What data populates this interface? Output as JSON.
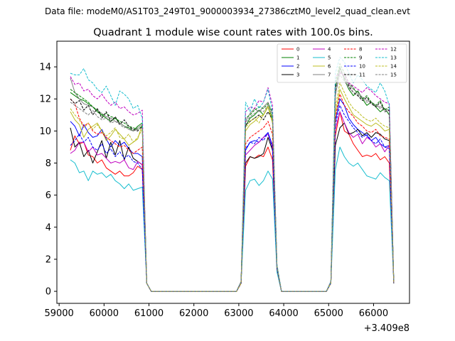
{
  "chart_data": {
    "type": "line",
    "suptitle": "Data file: modeM0/AS1T03_249T01_9000003934_27386cztM0_level2_quad_clean.evt",
    "title": "Quadrant 1 module wise count rates with 100.0s bins.",
    "xlabel": "",
    "ylabel": "",
    "x_offset_label": "+3.409e8",
    "xlim": [
      58950,
      66800
    ],
    "ylim": [
      -0.75,
      15.6
    ],
    "xticks": [
      59000,
      60000,
      61000,
      62000,
      63000,
      64000,
      65000,
      66000
    ],
    "yticks": [
      0,
      2,
      4,
      6,
      8,
      10,
      12,
      14
    ],
    "segments": [
      {
        "start": 59250,
        "step": 100,
        "count": 17
      },
      {
        "start": 60950,
        "step": 100,
        "count": 21
      },
      {
        "start": 63050,
        "step": 100,
        "count": 7
      },
      {
        "start": 63750,
        "step": 100,
        "count": 14
      },
      {
        "start": 65150,
        "step": 100,
        "count": 14
      }
    ],
    "legend_columns": 4,
    "series": [
      {
        "name": "0",
        "color": "#ff0000",
        "dash": "solid",
        "values": [
          8.8,
          9.7,
          9.2,
          9.3,
          8.5,
          8.4,
          8.0,
          8.2,
          7.7,
          7.5,
          7.3,
          7.5,
          7.2,
          7.2,
          7.4,
          7.8,
          7.6,
          0.5,
          0,
          0,
          0,
          0,
          0,
          0,
          0,
          0,
          0,
          0,
          0,
          0,
          0,
          0,
          0,
          0,
          0,
          0,
          0,
          0,
          0.5,
          7.8,
          8.4,
          8.3,
          8.5,
          8.4,
          9.0,
          8.2,
          1.4,
          0,
          0,
          0,
          0,
          0,
          0,
          0,
          0,
          0,
          0,
          0,
          0.5,
          9.7,
          11.2,
          10.0,
          9.8,
          9.2,
          8.8,
          8.4,
          8.5,
          8.4,
          8.6,
          8.2,
          8.4,
          8.0,
          0.5
        ]
      },
      {
        "name": "1",
        "color": "#008000",
        "dash": "solid",
        "values": [
          12.4,
          12.2,
          12.0,
          11.9,
          11.7,
          11.5,
          11.2,
          11.0,
          10.8,
          10.6,
          10.8,
          10.5,
          10.3,
          10.2,
          10.0,
          10.3,
          10.5,
          0.5,
          0,
          0,
          0,
          0,
          0,
          0,
          0,
          0,
          0,
          0,
          0,
          0,
          0,
          0,
          0,
          0,
          0,
          0,
          0,
          0,
          0.6,
          10.3,
          10.8,
          11.0,
          11.3,
          11.0,
          11.5,
          10.8,
          1.5,
          0,
          0,
          0,
          0,
          0,
          0,
          0,
          0,
          0,
          0,
          0,
          0.6,
          12.7,
          14.0,
          13.2,
          12.6,
          12.2,
          12.5,
          12.0,
          11.6,
          11.8,
          11.5,
          11.2,
          11.4,
          11.0,
          0.5
        ]
      },
      {
        "name": "2",
        "color": "#0000ff",
        "dash": "solid",
        "values": [
          10.6,
          10.3,
          9.7,
          10.4,
          9.9,
          9.6,
          9.7,
          10.1,
          9.5,
          9.0,
          9.4,
          9.1,
          9.3,
          8.9,
          8.6,
          8.6,
          8.4,
          0.5,
          0,
          0,
          0,
          0,
          0,
          0,
          0,
          0,
          0,
          0,
          0,
          0,
          0,
          0,
          0,
          0,
          0,
          0,
          0,
          0,
          0.5,
          8.8,
          9.3,
          9.4,
          9.3,
          9.6,
          9.9,
          9.1,
          1.3,
          0,
          0,
          0,
          0,
          0,
          0,
          0,
          0,
          0,
          0,
          0,
          0.5,
          10.6,
          12.0,
          11.6,
          10.8,
          10.4,
          10.1,
          9.9,
          9.7,
          9.4,
          9.6,
          9.2,
          9.0,
          9.1,
          0.5
        ]
      },
      {
        "name": "3",
        "color": "#000000",
        "dash": "solid",
        "values": [
          10.2,
          9.0,
          9.3,
          8.4,
          8.8,
          8.0,
          8.7,
          9.4,
          8.3,
          9.3,
          8.5,
          9.4,
          8.2,
          9.0,
          8.3,
          8.1,
          7.9,
          0.5,
          0,
          0,
          0,
          0,
          0,
          0,
          0,
          0,
          0,
          0,
          0,
          0,
          0,
          0,
          0,
          0,
          0,
          0,
          0,
          0,
          0.5,
          8.0,
          8.4,
          8.3,
          8.4,
          8.6,
          9.6,
          8.8,
          1.4,
          0,
          0,
          0,
          0,
          0,
          0,
          0,
          0,
          0,
          0,
          0,
          0.5,
          9.1,
          10.2,
          10.5,
          9.8,
          9.9,
          10.1,
          9.7,
          9.9,
          9.6,
          9.9,
          9.8,
          9.5,
          9.4,
          0.5
        ]
      },
      {
        "name": "4",
        "color": "#bf00bf",
        "dash": "solid",
        "values": [
          8.6,
          8.8,
          9.3,
          9.3,
          8.7,
          9.0,
          8.5,
          8.6,
          8.3,
          8.0,
          8.1,
          8.0,
          8.2,
          7.7,
          7.6,
          8.1,
          7.9,
          0.5,
          0,
          0,
          0,
          0,
          0,
          0,
          0,
          0,
          0,
          0,
          0,
          0,
          0,
          0,
          0,
          0,
          0,
          0,
          0,
          0,
          0.5,
          8.5,
          8.8,
          9.1,
          9.3,
          9.6,
          9.8,
          9.0,
          1.3,
          0,
          0,
          0,
          0,
          0,
          0,
          0,
          0,
          0,
          0,
          0,
          0.5,
          10.1,
          11.2,
          10.5,
          9.9,
          9.6,
          9.8,
          9.2,
          9.6,
          9.4,
          9.0,
          9.2,
          8.7,
          9.1,
          0.5
        ]
      },
      {
        "name": "5",
        "color": "#17becf",
        "dash": "solid",
        "values": [
          8.2,
          8.0,
          7.4,
          7.5,
          6.9,
          7.5,
          7.3,
          7.4,
          7.1,
          7.3,
          6.9,
          6.7,
          6.4,
          6.7,
          6.3,
          6.4,
          6.5,
          0.5,
          0,
          0,
          0,
          0,
          0,
          0,
          0,
          0,
          0,
          0,
          0,
          0,
          0,
          0,
          0,
          0,
          0,
          0,
          0,
          0,
          0.5,
          6.3,
          6.9,
          7.0,
          6.6,
          6.9,
          7.5,
          7.0,
          1.2,
          0,
          0,
          0,
          0,
          0,
          0,
          0,
          0,
          0,
          0,
          0,
          0.5,
          7.6,
          9.0,
          8.4,
          8.0,
          7.8,
          8.0,
          7.6,
          7.2,
          7.1,
          7.0,
          7.4,
          7.1,
          6.9,
          0.5
        ]
      },
      {
        "name": "6",
        "color": "#bcbd22",
        "dash": "solid",
        "values": [
          11.2,
          10.7,
          10.4,
          9.6,
          10.1,
          10.3,
          10.5,
          10.0,
          9.4,
          9.7,
          10.1,
          9.8,
          9.5,
          9.1,
          9.3,
          9.5,
          10.4,
          0.5,
          0,
          0,
          0,
          0,
          0,
          0,
          0,
          0,
          0,
          0,
          0,
          0,
          0,
          0,
          0,
          0,
          0,
          0,
          0,
          0,
          0.5,
          10.0,
          10.4,
          10.6,
          10.9,
          11.0,
          11.5,
          10.5,
          1.5,
          0,
          0,
          0,
          0,
          0,
          0,
          0,
          0,
          0,
          0,
          0,
          0.5,
          11.1,
          12.6,
          12.0,
          11.5,
          11.0,
          10.8,
          10.6,
          10.4,
          10.3,
          10.5,
          10.3,
          10.0,
          10.1,
          0.5
        ]
      },
      {
        "name": "7",
        "color": "#808080",
        "dash": "solid",
        "values": [
          13.3,
          12.4,
          12.0,
          11.7,
          11.6,
          11.5,
          11.3,
          11.1,
          10.9,
          10.8,
          10.6,
          10.5,
          10.3,
          10.1,
          10.0,
          10.2,
          10.4,
          0.5,
          0,
          0,
          0,
          0,
          0,
          0,
          0,
          0,
          0,
          0,
          0,
          0,
          0,
          0,
          0,
          0,
          0,
          0,
          0,
          0,
          0.6,
          10.6,
          11.1,
          11.4,
          11.2,
          11.5,
          11.8,
          11.0,
          1.6,
          0,
          0,
          0,
          0,
          0,
          0,
          0,
          0,
          0,
          0,
          0,
          0.6,
          12.2,
          13.7,
          13.4,
          12.9,
          12.6,
          12.4,
          12.1,
          11.9,
          11.8,
          11.6,
          11.5,
          11.4,
          11.3,
          0.5
        ]
      },
      {
        "name": "8",
        "color": "#ff0000",
        "dash": "dashed",
        "values": [
          12.0,
          11.7,
          10.8,
          10.3,
          10.5,
          10.0,
          9.8,
          9.9,
          9.6,
          9.4,
          9.2,
          9.0,
          9.1,
          8.8,
          8.6,
          8.8,
          9.0,
          0.5,
          0,
          0,
          0,
          0,
          0,
          0,
          0,
          0,
          0,
          0,
          0,
          0,
          0,
          0,
          0,
          0,
          0,
          0,
          0,
          0,
          0.5,
          9.2,
          9.6,
          9.8,
          10.0,
          10.2,
          10.6,
          9.8,
          1.4,
          0,
          0,
          0,
          0,
          0,
          0,
          0,
          0,
          0,
          0,
          0,
          0.5,
          10.8,
          12.3,
          11.6,
          11.2,
          10.9,
          10.5,
          10.3,
          10.0,
          9.9,
          10.1,
          9.7,
          9.6,
          9.5,
          0.5
        ]
      },
      {
        "name": "9",
        "color": "#008000",
        "dash": "dashed",
        "values": [
          12.6,
          12.4,
          12.2,
          12.0,
          11.8,
          11.5,
          11.3,
          11.0,
          11.1,
          10.9,
          10.8,
          10.6,
          10.5,
          10.3,
          10.2,
          10.1,
          10.3,
          0.5,
          0,
          0,
          0,
          0,
          0,
          0,
          0,
          0,
          0,
          0,
          0,
          0,
          0,
          0,
          0,
          0,
          0,
          0,
          0,
          0,
          0.6,
          10.8,
          11.0,
          11.3,
          11.5,
          11.4,
          11.7,
          11.2,
          1.6,
          0,
          0,
          0,
          0,
          0,
          0,
          0,
          0,
          0,
          0,
          0,
          0.6,
          13.0,
          14.2,
          13.6,
          13.0,
          12.7,
          12.3,
          12.0,
          12.2,
          11.8,
          11.6,
          11.9,
          11.3,
          11.5,
          0.5
        ]
      },
      {
        "name": "10",
        "color": "#0000ff",
        "dash": "dashed",
        "values": [
          9.1,
          9.4,
          9.8,
          9.3,
          9.6,
          9.0,
          8.8,
          9.2,
          8.6,
          8.9,
          8.4,
          8.7,
          8.3,
          8.5,
          8.1,
          8.0,
          7.6,
          0.5,
          0,
          0,
          0,
          0,
          0,
          0,
          0,
          0,
          0,
          0,
          0,
          0,
          0,
          0,
          0,
          0,
          0,
          0,
          0,
          0,
          0.5,
          8.9,
          9.3,
          9.2,
          9.6,
          9.4,
          9.9,
          8.9,
          1.4,
          0,
          0,
          0,
          0,
          0,
          0,
          0,
          0,
          0,
          0,
          0,
          0.5,
          10.4,
          11.6,
          11.0,
          10.6,
          10.2,
          9.9,
          9.6,
          9.8,
          9.4,
          9.2,
          9.5,
          9.0,
          8.9,
          0.5
        ]
      },
      {
        "name": "11",
        "color": "#000000",
        "dash": "dashed",
        "values": [
          12.0,
          11.7,
          11.9,
          11.3,
          11.6,
          11.0,
          11.4,
          10.8,
          11.2,
          10.6,
          10.9,
          10.4,
          10.7,
          10.3,
          10.1,
          10.0,
          10.3,
          0.5,
          0,
          0,
          0,
          0,
          0,
          0,
          0,
          0,
          0,
          0,
          0,
          0,
          0,
          0,
          0,
          0,
          0,
          0,
          0,
          0,
          0.6,
          10.4,
          10.6,
          10.8,
          11.0,
          10.7,
          11.2,
          10.7,
          1.5,
          0,
          0,
          0,
          0,
          0,
          0,
          0,
          0,
          0,
          0,
          0,
          0.6,
          12.6,
          13.9,
          13.3,
          12.8,
          12.4,
          12.2,
          11.9,
          12.1,
          11.7,
          11.5,
          11.8,
          11.2,
          11.3,
          0.5
        ]
      },
      {
        "name": "12",
        "color": "#bf00bf",
        "dash": "dashed",
        "values": [
          13.4,
          12.9,
          13.0,
          12.5,
          12.6,
          12.2,
          12.0,
          12.3,
          11.9,
          11.6,
          11.8,
          11.4,
          11.5,
          11.2,
          11.0,
          11.1,
          11.3,
          0.5,
          0,
          0,
          0,
          0,
          0,
          0,
          0,
          0,
          0,
          0,
          0,
          0,
          0,
          0,
          0,
          0,
          0,
          0,
          0,
          0,
          0.6,
          11.2,
          11.5,
          11.4,
          11.9,
          11.8,
          12.7,
          11.6,
          1.6,
          0,
          0,
          0,
          0,
          0,
          0,
          0,
          0,
          0,
          0,
          0,
          0.6,
          13.4,
          13.6,
          13.5,
          13.0,
          12.8,
          12.6,
          12.4,
          12.7,
          12.5,
          12.2,
          12.0,
          11.8,
          11.7,
          0.5
        ]
      },
      {
        "name": "13",
        "color": "#17becf",
        "dash": "dashed",
        "values": [
          13.6,
          13.5,
          13.5,
          13.9,
          13.2,
          13.0,
          12.6,
          12.4,
          12.8,
          12.2,
          11.6,
          12.5,
          12.3,
          12.0,
          11.4,
          11.6,
          10.8,
          0.5,
          0,
          0,
          0,
          0,
          0,
          0,
          0,
          0,
          0,
          0,
          0,
          0,
          0,
          0,
          0,
          0,
          0,
          0,
          0,
          0,
          0.6,
          11.8,
          11.2,
          12.0,
          11.4,
          11.8,
          12.6,
          11.2,
          1.7,
          0,
          0,
          0,
          0,
          0,
          0,
          0,
          0,
          0,
          0,
          0,
          0.6,
          13.6,
          14.6,
          14.3,
          13.6,
          13.0,
          13.5,
          13.2,
          12.8,
          12.6,
          12.4,
          13.0,
          12.5,
          11.6,
          0.6
        ]
      },
      {
        "name": "14",
        "color": "#bcbd22",
        "dash": "dashed",
        "values": [
          11.4,
          11.0,
          10.7,
          10.2,
          10.5,
          10.1,
          10.4,
          10.0,
          9.7,
          9.9,
          10.2,
          9.6,
          9.5,
          9.8,
          9.3,
          9.6,
          10.1,
          0.5,
          0,
          0,
          0,
          0,
          0,
          0,
          0,
          0,
          0,
          0,
          0,
          0,
          0,
          0,
          0,
          0,
          0,
          0,
          0,
          0,
          0.5,
          10.2,
          10.6,
          10.8,
          10.5,
          11.0,
          11.6,
          10.6,
          1.5,
          0,
          0,
          0,
          0,
          0,
          0,
          0,
          0,
          0,
          0,
          0,
          0.5,
          11.5,
          13.0,
          12.4,
          11.8,
          11.4,
          11.2,
          10.9,
          10.7,
          10.6,
          10.8,
          10.5,
          10.3,
          10.2,
          0.5
        ]
      },
      {
        "name": "15",
        "color": "#808080",
        "dash": "dashed",
        "values": [
          11.8,
          11.6,
          11.4,
          11.2,
          11.0,
          11.3,
          10.9,
          10.7,
          10.8,
          10.5,
          10.6,
          10.4,
          10.2,
          10.3,
          10.0,
          10.1,
          10.2,
          0.5,
          0,
          0,
          0,
          0,
          0,
          0,
          0,
          0,
          0,
          0,
          0,
          0,
          0,
          0,
          0,
          0,
          0,
          0,
          0,
          0,
          0.6,
          10.5,
          10.9,
          11.1,
          11.3,
          11.2,
          11.6,
          11.0,
          1.6,
          0,
          0,
          0,
          0,
          0,
          0,
          0,
          0,
          0,
          0,
          0,
          0.6,
          12.3,
          13.5,
          13.1,
          12.7,
          12.4,
          12.3,
          12.0,
          11.8,
          11.7,
          11.6,
          11.4,
          11.3,
          11.2,
          0.5
        ]
      }
    ]
  }
}
